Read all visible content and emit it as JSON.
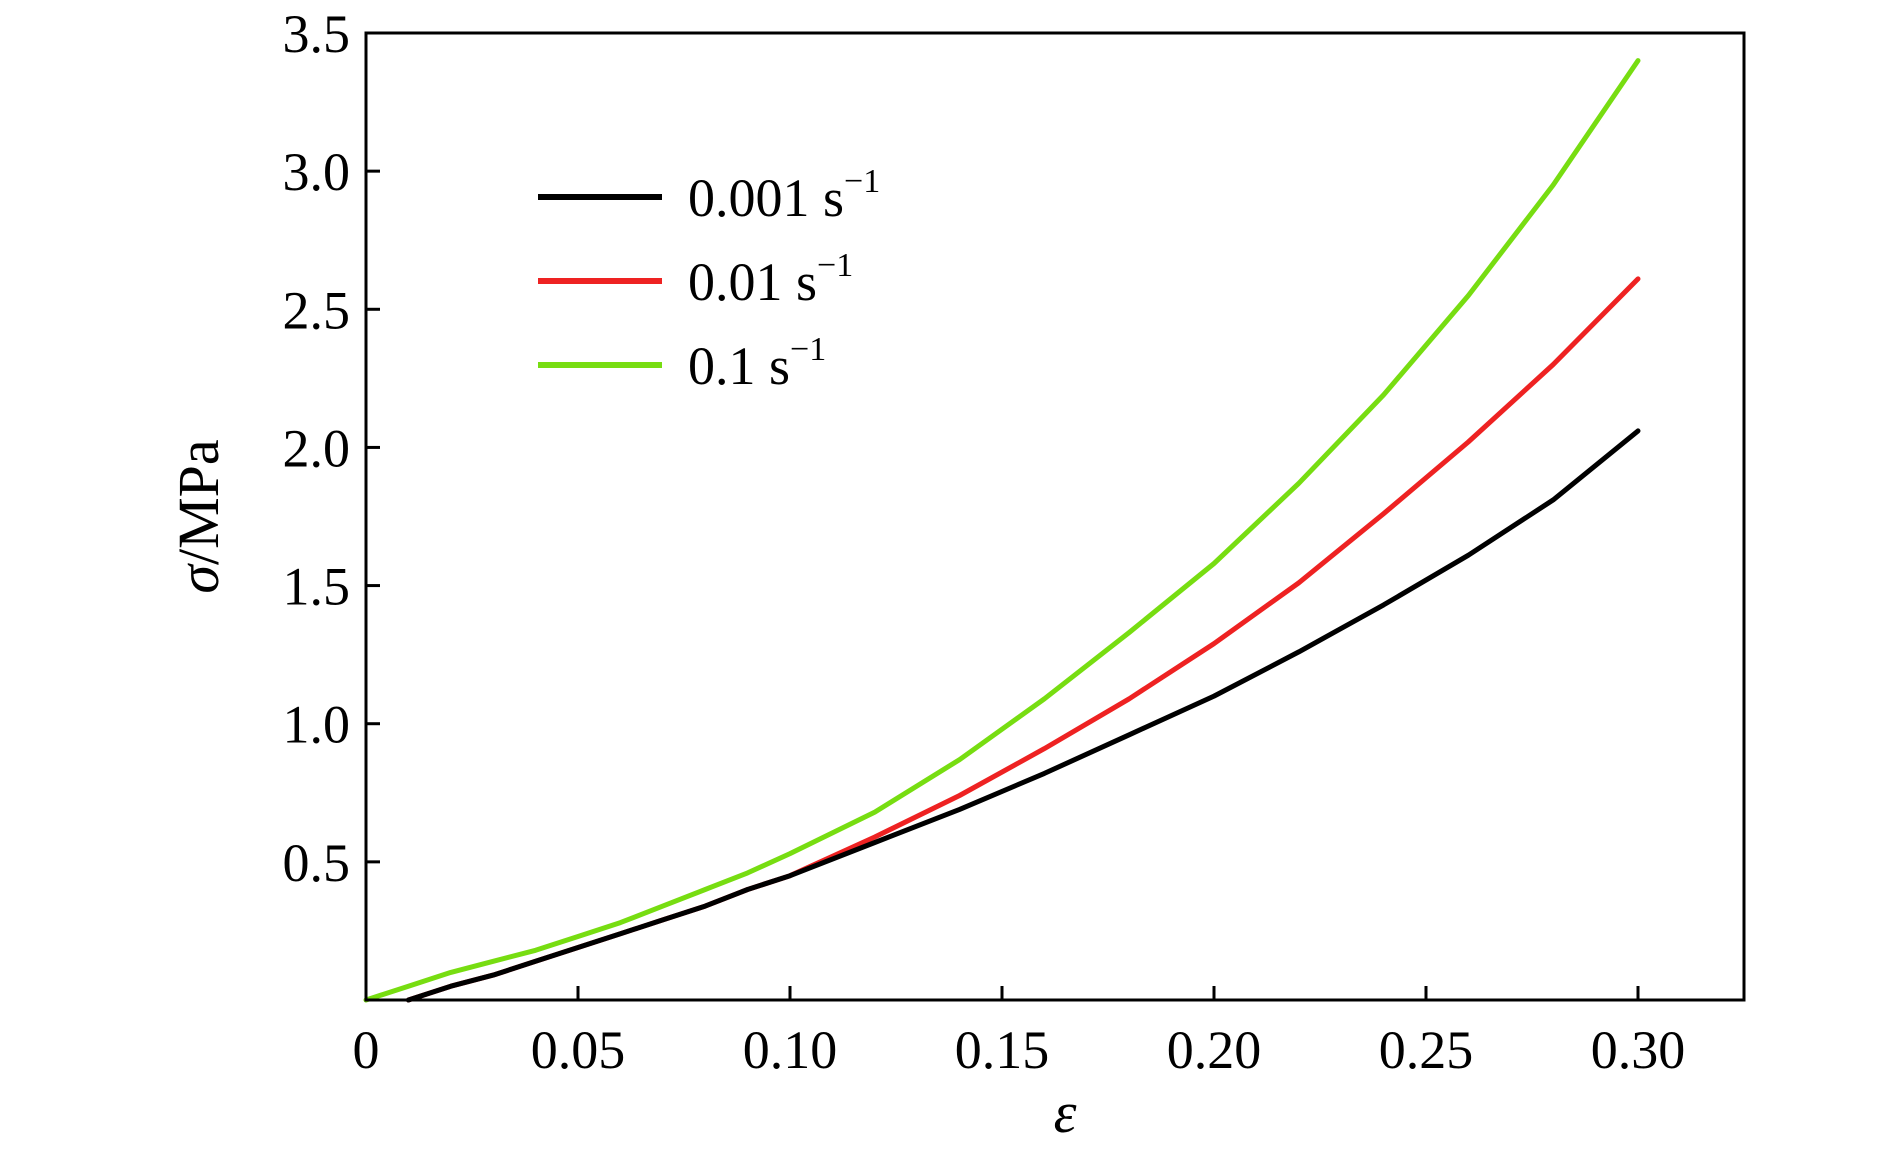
{
  "chart_data": {
    "type": "line",
    "xlabel": "ε",
    "ylabel_symbol": "σ",
    "ylabel_unit": "/MPa",
    "xlim": [
      0,
      0.325
    ],
    "ylim": [
      0,
      3.5
    ],
    "x_ticks": [
      0,
      0.05,
      0.1,
      0.15,
      0.2,
      0.25,
      0.3
    ],
    "x_tick_labels": [
      "0",
      "0.05",
      "0.10",
      "0.15",
      "0.20",
      "0.25",
      "0.30"
    ],
    "y_ticks": [
      0.5,
      1.0,
      1.5,
      2.0,
      2.5,
      3.0,
      3.5
    ],
    "y_tick_labels": [
      "0.5",
      "1.0",
      "1.5",
      "2.0",
      "2.5",
      "3.0",
      "3.5"
    ],
    "grid": false,
    "legend_position": "top-left",
    "series": [
      {
        "name": "0.001 s",
        "name_superscript": "−1",
        "color": "#000000",
        "x": [
          0.01,
          0.02,
          0.03,
          0.04,
          0.05,
          0.06,
          0.07,
          0.08,
          0.09,
          0.1,
          0.12,
          0.14,
          0.16,
          0.18,
          0.2,
          0.22,
          0.24,
          0.26,
          0.28,
          0.3
        ],
        "y": [
          0.0,
          0.05,
          0.09,
          0.14,
          0.19,
          0.24,
          0.29,
          0.34,
          0.4,
          0.45,
          0.57,
          0.69,
          0.82,
          0.96,
          1.1,
          1.26,
          1.43,
          1.61,
          1.81,
          2.06
        ]
      },
      {
        "name": "0.01 s",
        "name_superscript": "−1",
        "color": "#ee2222",
        "x": [
          0.01,
          0.02,
          0.03,
          0.04,
          0.05,
          0.06,
          0.07,
          0.08,
          0.09,
          0.1,
          0.12,
          0.14,
          0.16,
          0.18,
          0.2,
          0.22,
          0.24,
          0.26,
          0.28,
          0.3
        ],
        "y": [
          0.0,
          0.05,
          0.09,
          0.14,
          0.19,
          0.24,
          0.29,
          0.34,
          0.4,
          0.45,
          0.59,
          0.74,
          0.91,
          1.09,
          1.29,
          1.51,
          1.76,
          2.02,
          2.3,
          2.61
        ]
      },
      {
        "name": "0.1 s",
        "name_superscript": "−1",
        "color": "#77dd11",
        "x": [
          0.0,
          0.01,
          0.02,
          0.03,
          0.04,
          0.05,
          0.06,
          0.07,
          0.08,
          0.09,
          0.1,
          0.12,
          0.14,
          0.16,
          0.18,
          0.2,
          0.22,
          0.24,
          0.26,
          0.28,
          0.3
        ],
        "y": [
          0.0,
          0.05,
          0.1,
          0.14,
          0.18,
          0.23,
          0.28,
          0.34,
          0.4,
          0.46,
          0.53,
          0.68,
          0.87,
          1.09,
          1.33,
          1.58,
          1.87,
          2.19,
          2.55,
          2.95,
          3.4
        ]
      }
    ]
  }
}
